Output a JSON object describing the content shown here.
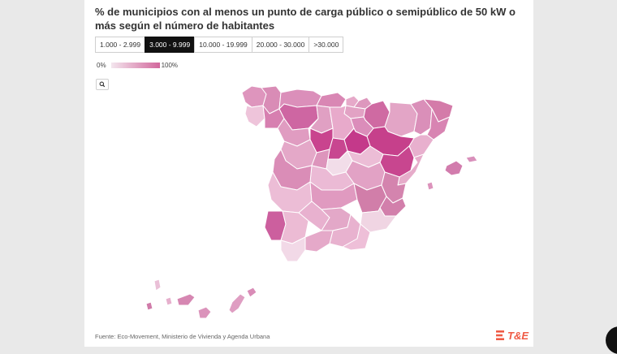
{
  "title": "% de municipios con al menos un punto de carga público o semipúblico de 50 kW o más según el número de habitantes",
  "tabs": [
    {
      "label": "1.000 - 2.999",
      "active": false
    },
    {
      "label": "3.000 - 9.999",
      "active": true
    },
    {
      "label": "10.000 - 19.999",
      "active": false
    },
    {
      "label": "20.000 - 30.000",
      "active": false
    },
    {
      "label": ">30.000",
      "active": false
    }
  ],
  "legend": {
    "min_label": "0%",
    "max_label": "100%",
    "color_min": "#f3e6ee",
    "color_max": "#d2679c"
  },
  "zoom_icon": "search-icon",
  "source": "Fuente: Eco-Movement, Ministerio de Vivienda y Agenda Urbana",
  "logo": {
    "text": "T&E",
    "color": "#ef5b45"
  },
  "colors": {
    "background": "#e9e9e9",
    "card": "#ffffff",
    "active_tab": "#111111",
    "province_border": "#ffffff"
  }
}
